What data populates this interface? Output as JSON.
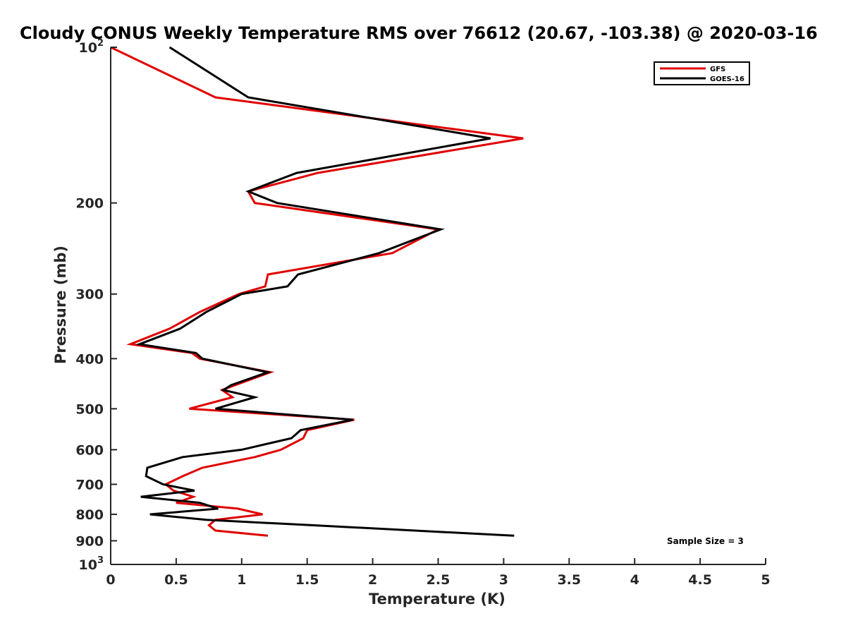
{
  "chart_data": {
    "type": "line",
    "title": "Cloudy CONUS Weekly Temperature RMS over 76612 (20.67, -103.38) @ 2020-03-16",
    "xlabel": "Temperature (K)",
    "ylabel": "Pressure (mb)",
    "xlim": [
      0,
      5
    ],
    "ylim": [
      100,
      1000
    ],
    "yscale": "log",
    "y_reversed": true,
    "grid": false,
    "legend_location": "top-right",
    "x_ticks": [
      "0",
      "0.5",
      "1",
      "1.5",
      "2",
      "2.5",
      "3",
      "3.5",
      "4",
      "4.5",
      "5"
    ],
    "y_ticks": [
      {
        "value": 100,
        "base": "10",
        "exp": "2"
      },
      {
        "value": 200,
        "label": "200"
      },
      {
        "value": 300,
        "label": "300"
      },
      {
        "value": 400,
        "label": "400"
      },
      {
        "value": 500,
        "label": "500"
      },
      {
        "value": 600,
        "label": "600"
      },
      {
        "value": 700,
        "label": "700"
      },
      {
        "value": 800,
        "label": "800"
      },
      {
        "value": 900,
        "label": "900"
      },
      {
        "value": 1000,
        "base": "10",
        "exp": "3"
      }
    ],
    "annotation": "Sample Size = 3",
    "series": [
      {
        "name": "GFS",
        "color": "#e00000",
        "points": [
          [
            0.0,
            100
          ],
          [
            0.8,
            125
          ],
          [
            3.15,
            150
          ],
          [
            1.58,
            175
          ],
          [
            1.05,
            190
          ],
          [
            1.1,
            200
          ],
          [
            2.5,
            225
          ],
          [
            2.15,
            250
          ],
          [
            1.2,
            275
          ],
          [
            1.18,
            290
          ],
          [
            0.98,
            300
          ],
          [
            0.68,
            325
          ],
          [
            0.45,
            350
          ],
          [
            0.15,
            375
          ],
          [
            0.62,
            390
          ],
          [
            0.68,
            400
          ],
          [
            1.22,
            425
          ],
          [
            0.95,
            450
          ],
          [
            0.85,
            460
          ],
          [
            0.93,
            475
          ],
          [
            0.6,
            500
          ],
          [
            1.86,
            525
          ],
          [
            1.5,
            550
          ],
          [
            1.47,
            570
          ],
          [
            1.3,
            600
          ],
          [
            1.1,
            620
          ],
          [
            0.7,
            650
          ],
          [
            0.55,
            675
          ],
          [
            0.42,
            700
          ],
          [
            0.48,
            720
          ],
          [
            0.63,
            740
          ],
          [
            0.5,
            760
          ],
          [
            0.97,
            780
          ],
          [
            1.16,
            800
          ],
          [
            0.8,
            820
          ],
          [
            0.75,
            840
          ],
          [
            0.8,
            860
          ],
          [
            1.2,
            880
          ]
        ]
      },
      {
        "name": "GOES-16",
        "color": "#000000",
        "points": [
          [
            0.45,
            100
          ],
          [
            1.05,
            125
          ],
          [
            2.9,
            150
          ],
          [
            1.42,
            175
          ],
          [
            1.05,
            190
          ],
          [
            1.27,
            200
          ],
          [
            2.52,
            225
          ],
          [
            2.05,
            250
          ],
          [
            1.43,
            275
          ],
          [
            1.35,
            290
          ],
          [
            1.0,
            300
          ],
          [
            0.73,
            325
          ],
          [
            0.53,
            350
          ],
          [
            0.22,
            375
          ],
          [
            0.65,
            390
          ],
          [
            0.7,
            400
          ],
          [
            1.2,
            425
          ],
          [
            0.92,
            450
          ],
          [
            0.86,
            460
          ],
          [
            1.1,
            475
          ],
          [
            0.8,
            500
          ],
          [
            1.85,
            525
          ],
          [
            1.45,
            550
          ],
          [
            1.38,
            570
          ],
          [
            1.0,
            600
          ],
          [
            0.55,
            620
          ],
          [
            0.28,
            650
          ],
          [
            0.27,
            675
          ],
          [
            0.4,
            700
          ],
          [
            0.64,
            720
          ],
          [
            0.23,
            740
          ],
          [
            0.68,
            760
          ],
          [
            0.82,
            780
          ],
          [
            0.3,
            800
          ],
          [
            0.73,
            820
          ],
          [
            1.55,
            840
          ],
          [
            3.08,
            880
          ]
        ]
      }
    ]
  }
}
